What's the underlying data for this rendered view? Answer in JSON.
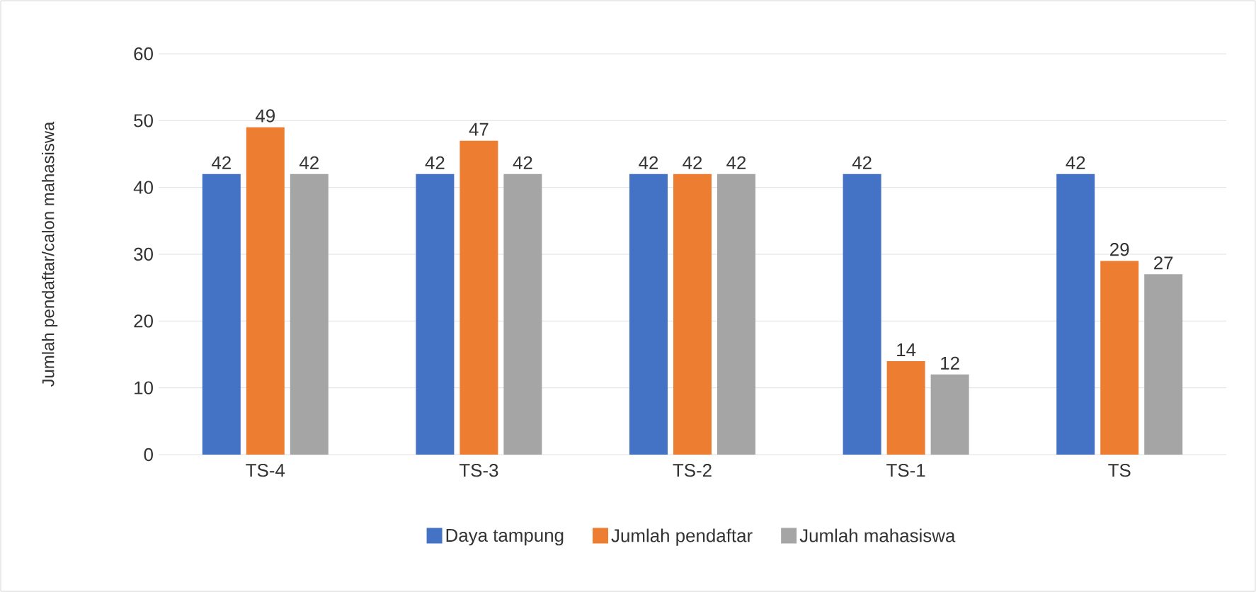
{
  "chart_data": {
    "type": "bar",
    "ylabel": "Jumlah pendaftar/calon mahasiswa",
    "categories": [
      "TS-4",
      "TS-3",
      "TS-2",
      "TS-1",
      "TS"
    ],
    "series": [
      {
        "name": "Daya tampung",
        "color": "#4472c4",
        "values": [
          42,
          42,
          42,
          42,
          42
        ]
      },
      {
        "name": "Jumlah pendaftar",
        "color": "#ed7d31",
        "values": [
          49,
          47,
          42,
          14,
          29
        ]
      },
      {
        "name": "Jumlah mahasiswa",
        "color": "#a5a5a5",
        "values": [
          42,
          42,
          42,
          12,
          27
        ]
      }
    ],
    "ylim": [
      0,
      60
    ],
    "yticks": [
      0,
      10,
      20,
      30,
      40,
      50,
      60
    ],
    "grid": "y",
    "legend": "bottom",
    "data_labels": true
  }
}
